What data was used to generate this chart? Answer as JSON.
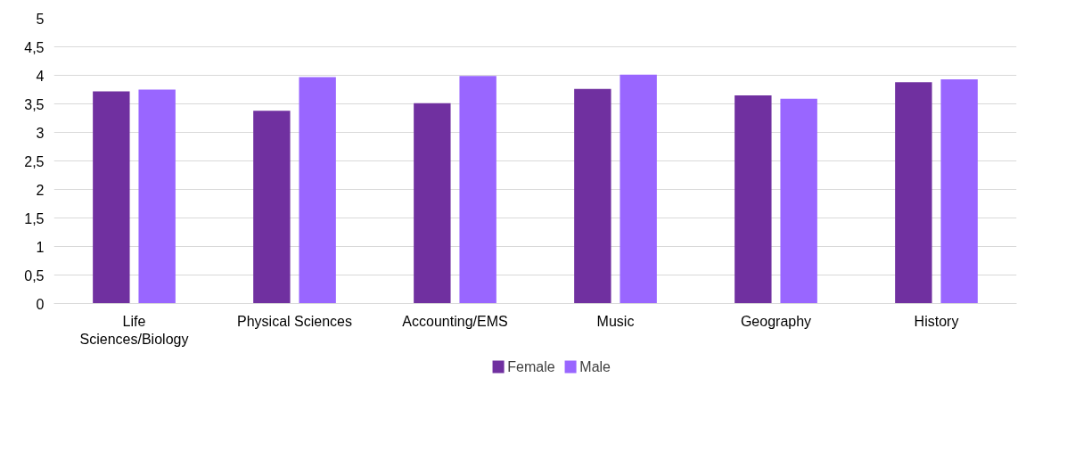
{
  "chart_data": {
    "type": "bar",
    "categories": [
      "Life Sciences/Biology",
      "Physical Sciences",
      "Accounting/EMS",
      "Music",
      "Geography",
      "History"
    ],
    "series": [
      {
        "name": "Female",
        "color": "#7030a0",
        "values": [
          3.72,
          3.38,
          3.51,
          3.76,
          3.65,
          3.88
        ]
      },
      {
        "name": "Male",
        "color": "#9966ff",
        "values": [
          3.75,
          3.97,
          3.99,
          4.01,
          3.59,
          3.93
        ]
      }
    ],
    "ylim": [
      0,
      5
    ],
    "yticks": [
      0,
      {
        "value": 0.5,
        "label": "0,5"
      },
      1,
      {
        "value": 1.5,
        "label": "1,5"
      },
      2,
      {
        "value": 2.5,
        "label": "2,5"
      },
      3,
      {
        "value": 3.5,
        "label": "3,5"
      },
      4,
      {
        "value": 4.5,
        "label": "4,5"
      },
      5
    ],
    "grid": "y",
    "legend": "bottom"
  }
}
